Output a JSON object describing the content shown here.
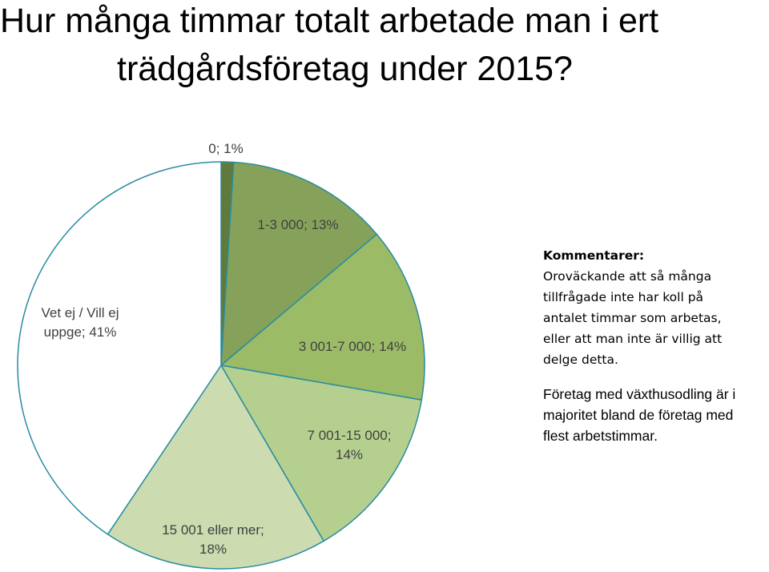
{
  "title": {
    "line1": "Hur många timmar totalt arbetade man i ert",
    "line2": "trädgårdsföretag under 2015?"
  },
  "chart_data": {
    "type": "pie",
    "title": "Hur många timmar totalt arbetade man i ert trädgårdsföretag under 2015?",
    "slices": [
      {
        "label": "0",
        "value": 1,
        "display": "0; 1%",
        "color": "#5f7a3a"
      },
      {
        "label": "1-3 000",
        "value": 13,
        "display": "1-3 000; 13%",
        "color": "#86a25a"
      },
      {
        "label": "3 001-7 000",
        "value": 14,
        "display": "3 001-7 000; 14%",
        "color": "#9bbb66"
      },
      {
        "label": "7 001-15 000",
        "value": 14,
        "display": "7 001-15 000; 14%",
        "color": "#b5d08e"
      },
      {
        "label": "15 001 eller mer",
        "value": 18,
        "display": "15 001 eller mer; 18%",
        "color": "#ccdcb0"
      },
      {
        "label": "Vet ej / Vill ej uppge",
        "value": 41,
        "display": "Vet ej / Vill ej uppge; 41%",
        "color": "#ffffff"
      }
    ],
    "stroke_color": "#2a8ca0"
  },
  "comments": {
    "heading": "Kommentarer:",
    "lines": [
      "Oroväckande att så många",
      "tillfrågade inte har koll på",
      "antalet timmar som arbetas,",
      "eller att man inte är villig att",
      "delge detta."
    ],
    "para2_lines": [
      "Företag med växthusodling är i",
      "majoritet bland de företag med",
      "flest arbetstimmar."
    ]
  },
  "labels": {
    "s0": [
      "0; 1%"
    ],
    "s1": [
      "1-3 000; 13%"
    ],
    "s2": [
      "3 001-7 000; 14%"
    ],
    "s3": [
      "7 001-15 000;",
      "14%"
    ],
    "s4": [
      "15 001 eller mer;",
      "18%"
    ],
    "s5": [
      "Vet ej / Vill ej",
      "uppge; 41%"
    ]
  }
}
